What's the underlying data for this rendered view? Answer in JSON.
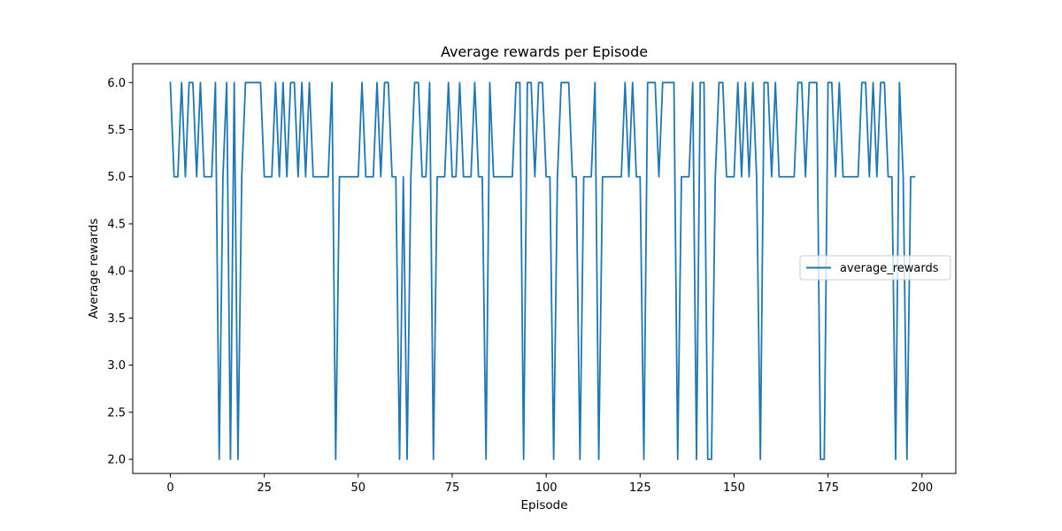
{
  "chart_data": {
    "type": "line",
    "title": "Average rewards per Episode",
    "xlabel": "Episode",
    "ylabel": "Average rewards",
    "xlim": [
      -10,
      209
    ],
    "ylim": [
      1.85,
      6.2
    ],
    "xticks": [
      0,
      25,
      50,
      75,
      100,
      125,
      150,
      175,
      200
    ],
    "xtick_labels": [
      "0",
      "25",
      "50",
      "75",
      "100",
      "125",
      "150",
      "175",
      "200"
    ],
    "yticks": [
      2.0,
      2.5,
      3.0,
      3.5,
      4.0,
      4.5,
      5.0,
      5.5,
      6.0
    ],
    "ytick_labels": [
      "2.0",
      "2.5",
      "3.0",
      "3.5",
      "4.0",
      "4.5",
      "5.0",
      "5.5",
      "6.0"
    ],
    "grid": false,
    "legend_position": "center-right",
    "series": [
      {
        "name": "average_rewards",
        "color": "#1f77b4",
        "x_start": 0,
        "x_step": 1,
        "values": [
          6,
          5,
          5,
          6,
          5,
          6,
          6,
          5,
          6,
          5,
          5,
          5,
          6,
          2,
          5,
          6,
          2,
          6,
          2,
          5,
          6,
          6,
          6,
          6,
          6,
          5,
          5,
          5,
          6,
          5,
          6,
          5,
          6,
          6,
          5,
          6,
          5,
          6,
          5,
          5,
          5,
          5,
          5,
          6,
          2,
          5,
          5,
          5,
          5,
          5,
          5,
          6,
          5,
          5,
          5,
          6,
          5,
          6,
          6,
          5,
          5,
          2,
          5,
          2,
          5,
          6,
          6,
          5,
          5,
          6,
          2,
          5,
          5,
          5,
          6,
          5,
          5,
          6,
          5,
          5,
          5,
          6,
          5,
          5,
          2,
          6,
          5,
          5,
          5,
          5,
          5,
          5,
          6,
          6,
          2,
          6,
          6,
          5,
          6,
          6,
          5,
          5,
          2,
          5,
          6,
          6,
          6,
          5,
          5,
          2,
          5,
          5,
          5,
          6,
          2,
          5,
          5,
          5,
          5,
          5,
          5,
          6,
          5,
          6,
          5,
          5,
          2,
          6,
          6,
          6,
          5,
          6,
          6,
          6,
          6,
          2,
          5,
          5,
          5,
          6,
          2,
          6,
          6,
          2,
          2,
          5,
          6,
          6,
          5,
          5,
          5,
          6,
          5,
          6,
          5,
          6,
          5,
          2,
          6,
          6,
          5,
          6,
          5,
          5,
          5,
          5,
          5,
          6,
          6,
          5,
          6,
          6,
          6,
          2,
          2,
          6,
          6,
          5,
          6,
          5,
          5,
          5,
          5,
          5,
          6,
          6,
          5,
          6,
          5,
          6,
          6,
          5,
          5,
          2,
          6,
          5,
          2,
          5,
          5
        ]
      }
    ]
  }
}
